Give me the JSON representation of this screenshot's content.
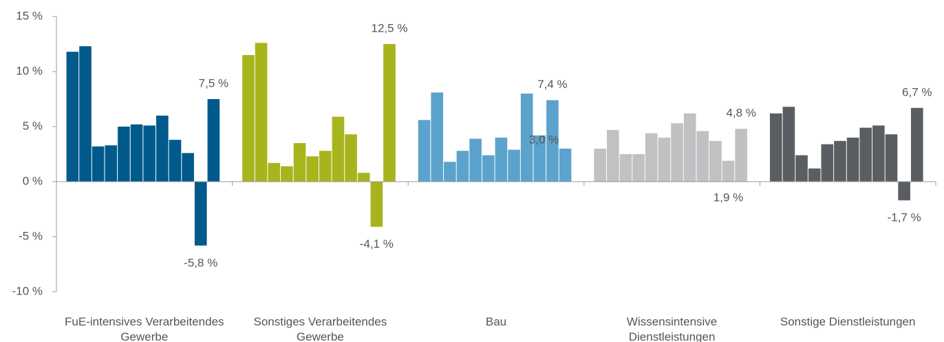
{
  "chart_data": {
    "type": "bar",
    "ylim": [
      -10,
      15
    ],
    "yticks": [
      {
        "value": -10,
        "label": "-10 %"
      },
      {
        "value": -5,
        "label": "-5 %"
      },
      {
        "value": 0,
        "label": "0 %"
      },
      {
        "value": 5,
        "label": "5 %"
      },
      {
        "value": 10,
        "label": "10 %"
      },
      {
        "value": 15,
        "label": "15 %"
      }
    ],
    "groups": [
      {
        "name": "FuE-intensives Verarbeitendes Gewerbe",
        "color": "#005a8c",
        "values": [
          11.8,
          12.3,
          3.2,
          3.3,
          5.0,
          5.2,
          5.1,
          6.0,
          3.8,
          2.6,
          -5.8,
          7.5
        ],
        "value_labels": [
          null,
          null,
          null,
          null,
          null,
          null,
          null,
          null,
          null,
          null,
          "-5,8 %",
          "7,5 %"
        ]
      },
      {
        "name": "Sonstiges Verarbeitendes Gewerbe",
        "color": "#a8b41c",
        "values": [
          11.5,
          12.6,
          1.7,
          1.4,
          3.5,
          2.3,
          2.8,
          5.9,
          4.3,
          0.8,
          -4.1,
          12.5
        ],
        "value_labels": [
          null,
          null,
          null,
          null,
          null,
          null,
          null,
          null,
          null,
          null,
          "-4,1 %",
          "12,5 %"
        ]
      },
      {
        "name": "Bau",
        "color": "#5ba3cc",
        "values": [
          5.6,
          8.1,
          1.8,
          2.8,
          3.9,
          2.4,
          4.0,
          2.9,
          8.0,
          4.2,
          7.4,
          3.0
        ],
        "value_labels": [
          null,
          null,
          null,
          null,
          null,
          null,
          null,
          null,
          null,
          null,
          "7,4 %",
          "3,0 %"
        ]
      },
      {
        "name": "Wissensintensive Dienstleistungen",
        "color": "#bfc1c3",
        "values": [
          3.0,
          4.7,
          2.5,
          2.5,
          4.4,
          4.0,
          5.3,
          6.2,
          4.6,
          3.7,
          1.9,
          4.8
        ],
        "value_labels": [
          null,
          null,
          null,
          null,
          null,
          null,
          null,
          null,
          null,
          null,
          "1,9 %",
          "4,8 %"
        ]
      },
      {
        "name": "Sonstige Dienstleistungen",
        "color": "#5a5e62",
        "values": [
          6.2,
          6.8,
          2.4,
          1.2,
          3.4,
          3.7,
          4.0,
          4.9,
          5.1,
          4.3,
          -1.7,
          6.7
        ],
        "value_labels": [
          null,
          null,
          null,
          null,
          null,
          null,
          null,
          null,
          null,
          null,
          "-1,7 %",
          "6,7 %"
        ]
      }
    ]
  }
}
